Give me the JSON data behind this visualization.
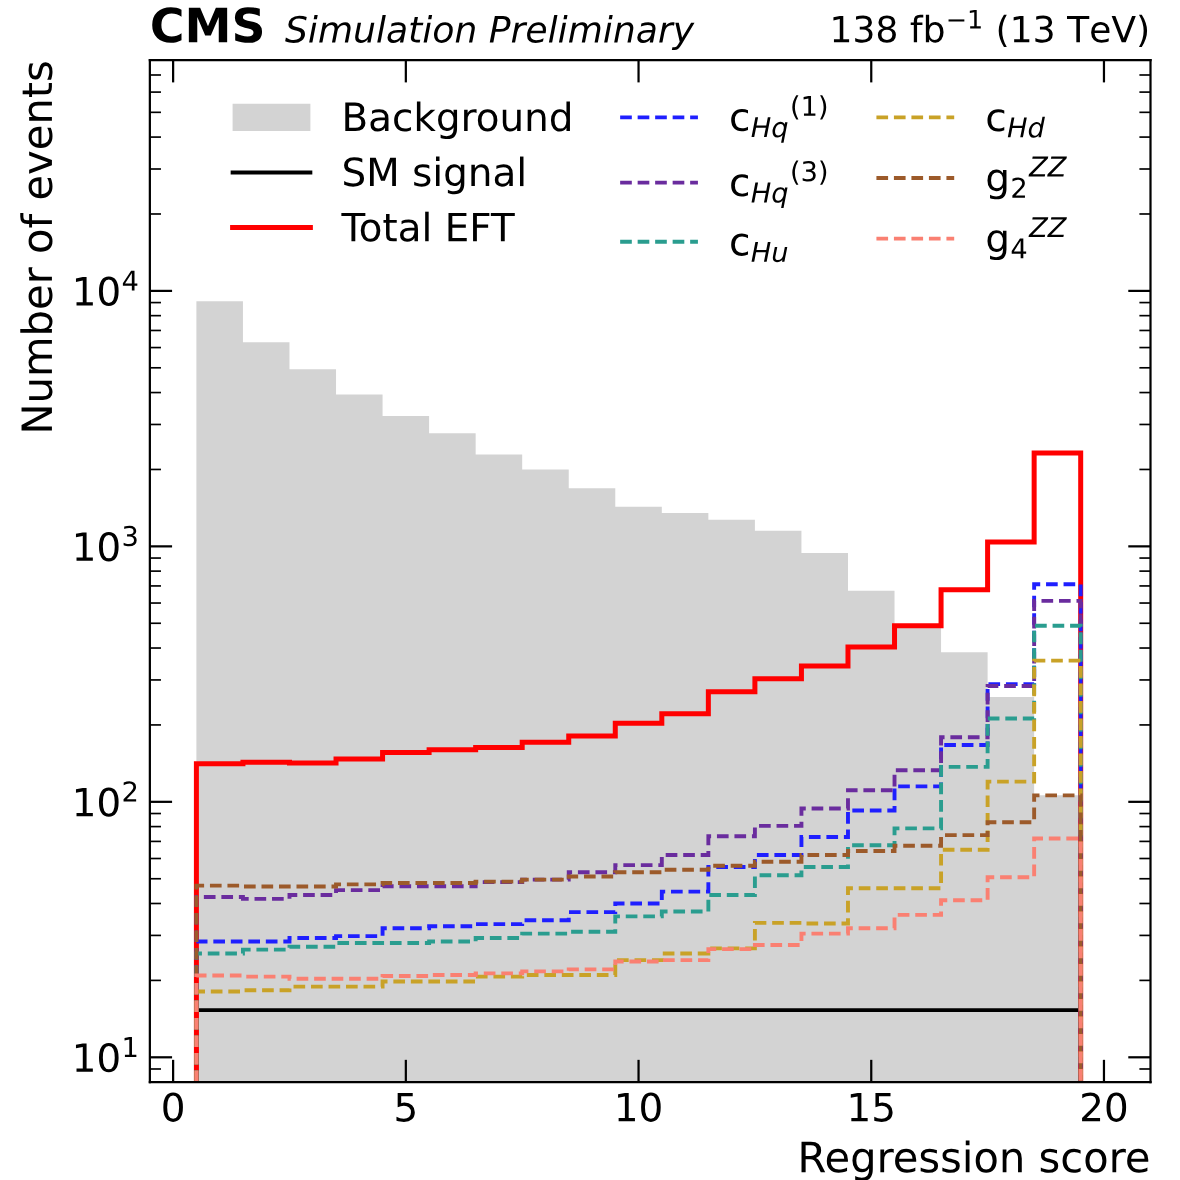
{
  "chart_data": {
    "type": "histogram",
    "title": "CMS",
    "subtitle": "Simulation Preliminary",
    "annotations": [
      "138 fb$^{−1}$ (13 TeV)"
    ],
    "xlabel": "Regression score",
    "ylabel": "Number of events",
    "bins": [
      0.5,
      1.5,
      2.5,
      3.5,
      4.5,
      5.5,
      6.5,
      7.5,
      8.5,
      9.5,
      10.5,
      11.5,
      12.5,
      13.5,
      14.5,
      15.5,
      16.5,
      17.5,
      18.5,
      19.5
    ],
    "series": [
      {
        "name": "Background",
        "color": "#d3d3d3",
        "values": [
          9100,
          6300,
          4930,
          3930,
          3240,
          2770,
          2290,
          2000,
          1690,
          1430,
          1350,
          1270,
          1150,
          942,
          670,
          487,
          385,
          257,
          106
        ]
      },
      {
        "name": "SM signal",
        "color": "#000000",
        "line_style": "solid",
        "values": [
          15.3,
          15.3,
          15.3,
          15.3,
          15.3,
          15.3,
          15.3,
          15.3,
          15.3,
          15.3,
          15.3,
          15.3,
          15.3,
          15.3,
          15.3,
          15.3,
          15.3,
          15.3,
          15.3
        ]
      },
      {
        "name": "Total EFT",
        "color": "#ff0000",
        "line_style": "solid",
        "values": [
          141,
          143,
          142,
          147,
          156,
          160,
          163,
          171,
          181,
          203,
          221,
          270,
          303,
          340,
          404,
          489,
          677,
          1040,
          2320
        ]
      },
      {
        "name": "c$_{Hq}$$^{(1)}$",
        "color": "#1f1fff",
        "line_style": "dashed",
        "values": [
          28.4,
          28.4,
          29.3,
          29.8,
          32,
          32.6,
          33.2,
          34.4,
          37,
          40,
          44.5,
          55.6,
          61.9,
          72.8,
          92.5,
          115,
          167,
          289,
          711
        ]
      },
      {
        "name": "c$_{Hq}$$^{(3)}$",
        "color": "#6a2c9e",
        "line_style": "dashed",
        "values": [
          42.4,
          41.7,
          43.2,
          45.1,
          46.7,
          46.7,
          48.5,
          49.6,
          53,
          56.5,
          61.9,
          73.3,
          80.5,
          94.2,
          111,
          133,
          179,
          284,
          612
        ]
      },
      {
        "name": "c$_{Hu}$",
        "color": "#2a9d8f",
        "line_style": "dashed",
        "values": [
          25.5,
          26.4,
          27.1,
          28,
          28,
          28.4,
          29.3,
          30.5,
          31,
          35.6,
          37.2,
          43.2,
          51.6,
          55.6,
          67.6,
          78.7,
          137,
          212,
          489
        ]
      },
      {
        "name": "c$_{Hd}$",
        "color": "#c9a227",
        "line_style": "dashed",
        "values": [
          18.1,
          18.3,
          18.9,
          18.9,
          19.8,
          19.8,
          20.7,
          21,
          21,
          24,
          25.5,
          26.7,
          33.6,
          33.4,
          45.9,
          45.9,
          64.9,
          120,
          357
        ]
      },
      {
        "name": "g$_{2}$$^{ZZ}$",
        "color": "#9c5a2a",
        "line_style": "dashed",
        "values": [
          47,
          46.6,
          46.6,
          47.5,
          48.1,
          48.1,
          48.7,
          49.6,
          51,
          53,
          54.2,
          56.2,
          58.3,
          61.9,
          64.2,
          67.3,
          74.1,
          83.2,
          106
        ]
      },
      {
        "name": "g$_{4}$$^{ZZ}$",
        "color": "#fa8072",
        "line_style": "dashed",
        "values": [
          20.9,
          20.7,
          20.3,
          20.3,
          20.8,
          21,
          21.3,
          21.7,
          22.1,
          23.7,
          24,
          26.5,
          27.5,
          30.5,
          32,
          36.1,
          41.2,
          50.7,
          71.9
        ]
      }
    ],
    "log": "y",
    "xlim": [
      -0.5,
      21
    ],
    "ylim": [
      8,
      80000
    ],
    "xticks": [
      0,
      5,
      10,
      15,
      20
    ],
    "yticks": [
      {
        "value": 10,
        "label": "10$^{1}$"
      },
      {
        "value": 100,
        "label": "10$^{2}$"
      },
      {
        "value": 1000,
        "label": "10$^{3}$"
      },
      {
        "value": 10000,
        "label": "10$^{4}$"
      }
    ],
    "grid": false,
    "legend": "top"
  }
}
